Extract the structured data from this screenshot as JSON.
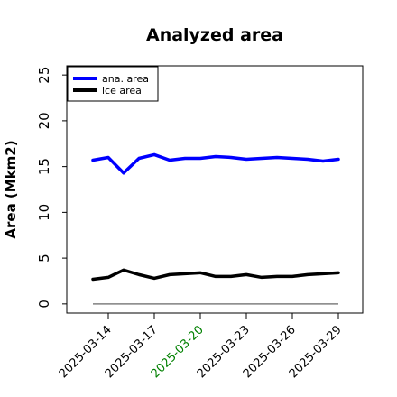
{
  "chart_data": {
    "type": "line",
    "title": "Analyzed area",
    "xlabel": "",
    "ylabel": "Area (Mkm2)",
    "x": [
      "2025-03-13",
      "2025-03-14",
      "2025-03-15",
      "2025-03-16",
      "2025-03-17",
      "2025-03-18",
      "2025-03-19",
      "2025-03-20",
      "2025-03-21",
      "2025-03-22",
      "2025-03-23",
      "2025-03-24",
      "2025-03-25",
      "2025-03-26",
      "2025-03-27",
      "2025-03-28",
      "2025-03-29"
    ],
    "xticks": [
      "2025-03-14",
      "2025-03-17",
      "2025-03-20",
      "2025-03-23",
      "2025-03-26",
      "2025-03-29"
    ],
    "xtick_colors": [
      "#000000",
      "#000000",
      "#008000",
      "#000000",
      "#000000",
      "#000000"
    ],
    "ylim": [
      -1,
      26
    ],
    "yticks": [
      0,
      5,
      10,
      15,
      20,
      25
    ],
    "series": [
      {
        "name": "ana. area",
        "color": "#0000ff",
        "values": [
          15.7,
          16.0,
          14.3,
          15.9,
          16.3,
          15.7,
          15.9,
          15.9,
          16.1,
          16.0,
          15.8,
          15.9,
          16.0,
          15.9,
          15.8,
          15.6,
          15.8
        ]
      },
      {
        "name": "ice area",
        "color": "#000000",
        "values": [
          2.7,
          2.9,
          3.7,
          3.2,
          2.8,
          3.2,
          3.3,
          3.4,
          3.0,
          3.0,
          3.2,
          2.9,
          3.0,
          3.0,
          3.2,
          3.3,
          3.4
        ]
      }
    ],
    "baseline": {
      "value": 0,
      "color": "#808080"
    },
    "legend_position": "top-left",
    "grid": false
  }
}
